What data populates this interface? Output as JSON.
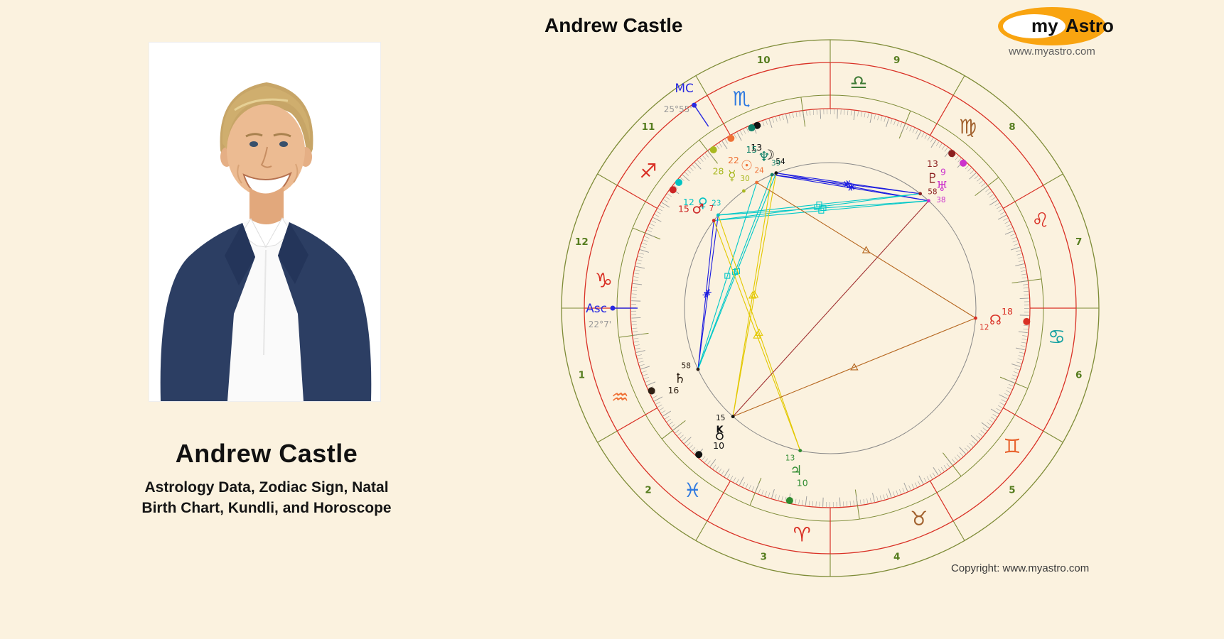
{
  "page": {
    "background": "#fbf2df"
  },
  "header": {
    "chart_title": "Andrew Castle"
  },
  "left_panel": {
    "name": "Andrew Castle",
    "subtitle_line1": "Astrology Data, Zodiac Sign, Natal",
    "subtitle_line2": "Birth Chart, Kundli, and Horoscope"
  },
  "logo": {
    "text_my": "my",
    "text_astro": "Astro",
    "url": "www.myastro.com",
    "ellipse_color": "#f9a410"
  },
  "footer": {
    "copyright": "Copyright: www.myastro.com"
  },
  "chart": {
    "angles": {
      "mc_label": "MC",
      "mc_degree": "25°55'",
      "mc_lambda": 235.92,
      "asc_label": "Asc",
      "asc_degree": "22°7'",
      "asc_lambda": 292.12
    },
    "houses": [
      "1",
      "2",
      "3",
      "4",
      "5",
      "6",
      "7",
      "8",
      "9",
      "10",
      "11",
      "12"
    ],
    "house_number_color": "#567d1f",
    "wheel_colors": {
      "green": "#7d8b36",
      "red": "#d93025",
      "ticks": "#999999",
      "inner": "#888888",
      "pointer": "#2a2ae0",
      "degree_text": "#999999"
    },
    "signs": [
      {
        "name": "aries",
        "glyph": "♈",
        "color": "#d93025"
      },
      {
        "name": "taurus",
        "glyph": "♉",
        "color": "#a2622f"
      },
      {
        "name": "gemini",
        "glyph": "♊",
        "color": "#e8622d"
      },
      {
        "name": "cancer",
        "glyph": "♋",
        "color": "#17a2a2"
      },
      {
        "name": "leo",
        "glyph": "♌",
        "color": "#d93025"
      },
      {
        "name": "virgo",
        "glyph": "♍",
        "color": "#a2622f"
      },
      {
        "name": "libra",
        "glyph": "♎",
        "color": "#3d7a35"
      },
      {
        "name": "scorpio",
        "glyph": "♏",
        "color": "#2f7ae0"
      },
      {
        "name": "sagittarius",
        "glyph": "♐",
        "color": "#d93025"
      },
      {
        "name": "capricorn",
        "glyph": "♑",
        "color": "#d93025"
      },
      {
        "name": "aquarius",
        "glyph": "♒",
        "color": "#ef7135"
      },
      {
        "name": "pisces",
        "glyph": "♓",
        "color": "#2f7ae0"
      }
    ],
    "planets": [
      {
        "name": "sun",
        "glyph": "☉",
        "color": "#ef7135",
        "deg": "22",
        "min": "24",
        "sign": "scorpio",
        "lambda": 232.4
      },
      {
        "name": "moon",
        "glyph": "☽",
        "color": "#111111",
        "deg": "13",
        "min": "54",
        "sign": "scorpio",
        "lambda": 223.9
      },
      {
        "name": "mercury",
        "glyph": "☿",
        "color": "#a8b820",
        "deg": "28",
        "min": "30",
        "sign": "scorpio",
        "lambda": 238.5
      },
      {
        "name": "venus",
        "glyph": "♀",
        "color": "#00c3c3",
        "deg": "12",
        "min": "23",
        "sign": "sagittarius",
        "lambda": 252.38
      },
      {
        "name": "mars",
        "glyph": "♂",
        "color": "#cc2525",
        "deg": "15",
        "min": "7",
        "sign": "sagittarius",
        "lambda": 255.12
      },
      {
        "name": "jupiter",
        "glyph": "♃",
        "color": "#2e8b2e",
        "deg": "10",
        "min": "13",
        "sign": "aries",
        "lambda": 10.22
      },
      {
        "name": "saturn",
        "glyph": "♄",
        "color": "#2e2014",
        "deg": "16",
        "min": "58",
        "sign": "aquarius",
        "lambda": 316.97
      },
      {
        "name": "uranus",
        "glyph": "♅",
        "color": "#cc33cc",
        "deg": "9",
        "min": "38",
        "sign": "virgo",
        "lambda": 159.63
      },
      {
        "name": "neptune",
        "glyph": "♆",
        "color": "#0f8068",
        "deg": "15",
        "min": "39",
        "sign": "scorpio",
        "lambda": 225.65
      },
      {
        "name": "pluto",
        "glyph": "♇",
        "color": "#8b2020",
        "deg": "13",
        "min": "58",
        "sign": "virgo",
        "lambda": 163.97
      },
      {
        "name": "node",
        "glyph": "☊",
        "color": "#d93025",
        "deg": "18",
        "min": "12",
        "sign": "cancer",
        "lambda": 108.2
      },
      {
        "name": "chiron",
        "glyph": "K",
        "color": "#111111",
        "deg": "10",
        "min": "15",
        "sign": "pisces",
        "lambda": 340.25
      }
    ],
    "aspects": [
      {
        "a": "moon",
        "b": "pluto",
        "type": "sextile",
        "color": "#1a1ae0"
      },
      {
        "a": "moon",
        "b": "uranus",
        "type": "sextile",
        "color": "#1a1ae0"
      },
      {
        "a": "neptune",
        "b": "pluto",
        "type": "sextile",
        "color": "#1a1ae0"
      },
      {
        "a": "neptune",
        "b": "uranus",
        "type": "sextile",
        "color": "#1a1ae0"
      },
      {
        "a": "saturn",
        "b": "venus",
        "type": "sextile",
        "color": "#1a1ae0"
      },
      {
        "a": "saturn",
        "b": "mars",
        "type": "sextile",
        "color": "#1a1ae0"
      },
      {
        "a": "sun",
        "b": "saturn",
        "type": "square",
        "color": "#00c8c8"
      },
      {
        "a": "moon",
        "b": "saturn",
        "type": "square",
        "color": "#00c8c8"
      },
      {
        "a": "neptune",
        "b": "saturn",
        "type": "square",
        "color": "#00c8c8"
      },
      {
        "a": "venus",
        "b": "uranus",
        "type": "square",
        "color": "#00c8c8"
      },
      {
        "a": "venus",
        "b": "pluto",
        "type": "square",
        "color": "#00c8c8"
      },
      {
        "a": "mars",
        "b": "uranus",
        "type": "square",
        "color": "#00c8c8"
      },
      {
        "a": "mars",
        "b": "pluto",
        "type": "square",
        "color": "#00c8c8"
      },
      {
        "a": "venus",
        "b": "jupiter",
        "type": "trine",
        "color": "#e3c800"
      },
      {
        "a": "mars",
        "b": "jupiter",
        "type": "trine",
        "color": "#e3c800"
      },
      {
        "a": "moon",
        "b": "chiron",
        "type": "trine",
        "color": "#e3c800"
      },
      {
        "a": "neptune",
        "b": "chiron",
        "type": "trine",
        "color": "#e3c800"
      },
      {
        "a": "sun",
        "b": "node",
        "type": "trine",
        "color": "#b5651d"
      },
      {
        "a": "node",
        "b": "chiron",
        "type": "trine",
        "color": "#b5651d"
      },
      {
        "a": "uranus",
        "b": "chiron",
        "type": "opposition",
        "color": "#a03030"
      }
    ]
  }
}
